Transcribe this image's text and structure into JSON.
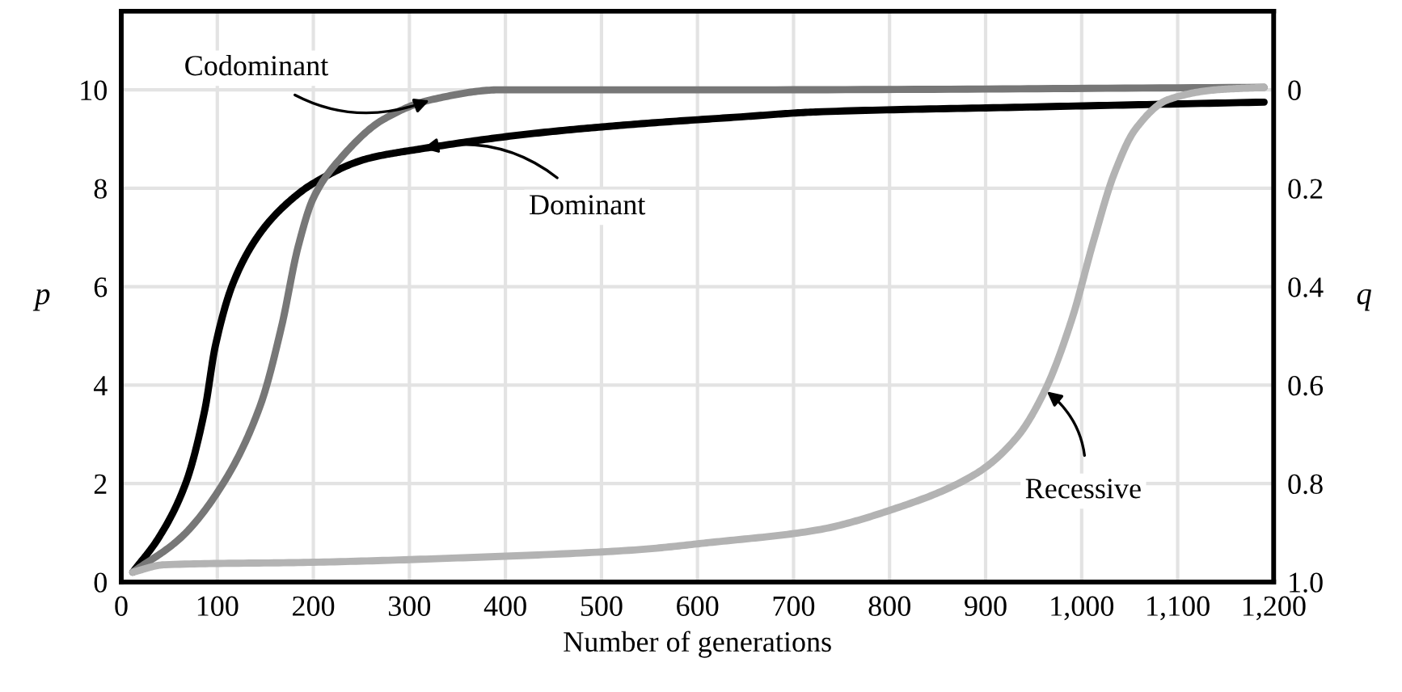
{
  "chart_data": {
    "type": "line",
    "xlabel": "Number of generations",
    "ylabel": "p",
    "y2label": "q",
    "xlim": [
      0,
      1200
    ],
    "xticks": [
      0,
      100,
      200,
      300,
      400,
      500,
      600,
      700,
      800,
      900,
      {
        "value": 1000,
        "label": "1,000"
      },
      {
        "value": 1100,
        "label": "1,100"
      },
      {
        "value": 1200,
        "label": "1,200"
      }
    ],
    "ylim": [
      0,
      11.6
    ],
    "yticks": [
      0,
      2,
      4,
      6,
      8,
      10
    ],
    "y2lim": [
      1.0,
      -0.16
    ],
    "y2ticks": [
      0,
      0.2,
      0.4,
      0.6,
      0.8,
      {
        "value": 1.0,
        "label": "1.0"
      }
    ],
    "grid": true,
    "line_style": "solid",
    "marker": "none",
    "series": [
      {
        "color": "#000000",
        "x": [
          12,
          39,
          67,
          87,
          98,
          117,
          145,
          173,
          200,
          256,
          312,
          423,
          534,
          645,
          723,
          945,
          1190
        ],
        "values": [
          0.2,
          0.9,
          2.0,
          3.5,
          4.8,
          6.1,
          7.1,
          7.7,
          8.1,
          8.6,
          8.8,
          9.1,
          9.3,
          9.45,
          9.55,
          9.65,
          9.75
        ]
      },
      {
        "color": "#777777",
        "x": [
          12,
          62,
          106,
          145,
          167,
          184,
          200,
          228,
          273,
          323,
          395,
          645,
          1190
        ],
        "values": [
          0.2,
          0.9,
          2.0,
          3.6,
          5.2,
          6.8,
          7.8,
          8.6,
          9.4,
          9.8,
          10.0,
          10.0,
          10.05
        ]
      },
      {
        "color": "#b3b3b3",
        "x": [
          12,
          45,
          200,
          367,
          534,
          612,
          723,
          807,
          890,
          933,
          962,
          990,
          1012,
          1034,
          1056,
          1090,
          1140,
          1190
        ],
        "values": [
          0.2,
          0.35,
          0.4,
          0.5,
          0.65,
          0.8,
          1.05,
          1.5,
          2.2,
          2.95,
          3.9,
          5.35,
          6.9,
          8.3,
          9.2,
          9.8,
          10.0,
          10.05
        ]
      }
    ],
    "annotations": [
      {
        "text": "Codominant",
        "x": 323,
        "y": 9.8
      },
      {
        "text": "Dominant",
        "x": 312,
        "y": 8.8
      },
      {
        "text": "Recessive",
        "x": 962,
        "y": 3.9
      }
    ]
  }
}
